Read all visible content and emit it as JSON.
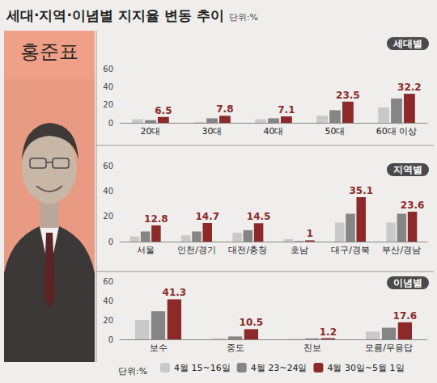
{
  "title": "세대·지역·이념별 지지율 변동 추이",
  "unit": "단위:%",
  "person": "홍준표",
  "chart_data": [
    {
      "type": "bar",
      "title": "세대별",
      "categories": [
        "20대",
        "30대",
        "40대",
        "50대",
        "60대 이상"
      ],
      "series": [
        {
          "name": "4월 15~16일",
          "color": "#c9c9c9",
          "values": [
            4,
            1,
            4,
            8,
            17
          ]
        },
        {
          "name": "4월 23~24일",
          "color": "#858585",
          "values": [
            3,
            5,
            5,
            14,
            27
          ]
        },
        {
          "name": "4월 30일~5월 1일",
          "color": "#8c2a2a",
          "values": [
            6.5,
            7.8,
            7.1,
            23.5,
            32.2
          ],
          "data_labels": true
        }
      ],
      "ylim": [
        0,
        60
      ],
      "yticks": [
        0,
        20,
        40,
        60
      ],
      "grid": false
    },
    {
      "type": "bar",
      "title": "지역별",
      "categories": [
        "서울",
        "인천/경기",
        "대전/충청",
        "호남",
        "대구/경북",
        "부산/경남"
      ],
      "series": [
        {
          "name": "4월 15~16일",
          "color": "#c9c9c9",
          "values": [
            4,
            5,
            7,
            2,
            15,
            15
          ]
        },
        {
          "name": "4월 23~24일",
          "color": "#858585",
          "values": [
            8,
            8,
            9,
            0.5,
            22,
            22
          ]
        },
        {
          "name": "4월 30일~5월 1일",
          "color": "#8c2a2a",
          "values": [
            12.8,
            14.7,
            14.5,
            1.0,
            35.1,
            23.6
          ],
          "data_labels": true
        }
      ],
      "ylim": [
        0,
        60
      ],
      "yticks": [
        0,
        20,
        40,
        60
      ],
      "grid": false
    },
    {
      "type": "bar",
      "title": "이념별",
      "categories": [
        "보수",
        "중도",
        "진보",
        "모름/무응답"
      ],
      "series": [
        {
          "name": "4월 15~16일",
          "color": "#c9c9c9",
          "values": [
            20,
            1,
            0.5,
            8
          ]
        },
        {
          "name": "4월 23~24일",
          "color": "#858585",
          "values": [
            29,
            3,
            1,
            12
          ]
        },
        {
          "name": "4월 30일~5월 1일",
          "color": "#8c2a2a",
          "values": [
            41.3,
            10.5,
            1.2,
            17.6
          ],
          "data_labels": true
        }
      ],
      "ylim": [
        0,
        60
      ],
      "yticks": [
        0,
        20,
        40,
        60
      ],
      "grid": false,
      "legend": "bottom"
    }
  ]
}
